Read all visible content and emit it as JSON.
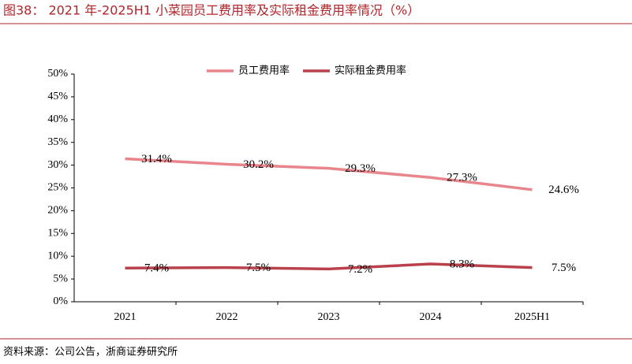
{
  "chart_data": {
    "type": "line",
    "title": "图38：  2021 年-2025H1 小菜园员工费用率及实际租金费用率情况（%）",
    "source": "资料来源：公司公告，浙商证券研究所",
    "categories": [
      "2021",
      "2022",
      "2023",
      "2024",
      "2025H1"
    ],
    "series": [
      {
        "name": "员工费用率",
        "color": "#e8858d",
        "values": [
          31.4,
          30.2,
          29.3,
          27.3,
          24.6
        ],
        "value_labels": [
          "31.4%",
          "30.2%",
          "29.3%",
          "27.3%",
          "24.6%"
        ]
      },
      {
        "name": "实际租金费用率",
        "color": "#b8414c",
        "values": [
          7.4,
          7.5,
          7.2,
          8.3,
          7.5
        ],
        "value_labels": [
          "7.4%",
          "7.5%",
          "7.2%",
          "8.3%",
          "7.5%"
        ]
      }
    ],
    "ylim": [
      0,
      50
    ],
    "yticks": [
      {
        "value": 0,
        "label": "0%"
      },
      {
        "value": 5,
        "label": "5%"
      },
      {
        "value": 10,
        "label": "10%"
      },
      {
        "value": 15,
        "label": "15%"
      },
      {
        "value": 20,
        "label": "20%"
      },
      {
        "value": 25,
        "label": "25%"
      },
      {
        "value": 30,
        "label": "30%"
      },
      {
        "value": 35,
        "label": "35%"
      },
      {
        "value": 40,
        "label": "40%"
      },
      {
        "value": 45,
        "label": "45%"
      },
      {
        "value": 50,
        "label": "50%"
      }
    ],
    "legend": "top"
  }
}
